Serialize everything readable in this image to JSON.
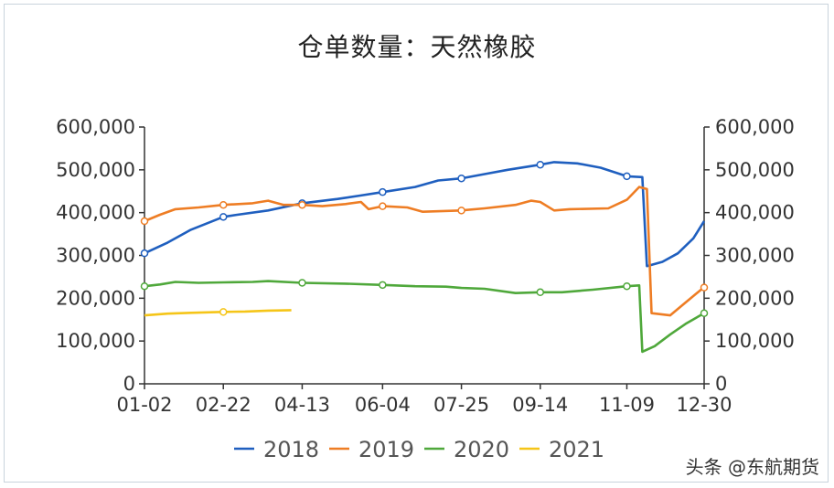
{
  "chart_data": {
    "type": "line",
    "title": "仓单数量：天然橡胶",
    "xlabel": "",
    "ylabel": "",
    "ylim": [
      0,
      600000
    ],
    "yticks": [
      0,
      100000,
      200000,
      300000,
      400000,
      500000,
      600000
    ],
    "ytick_labels": [
      "0",
      "100,000",
      "200,000",
      "300,000",
      "400,000",
      "500,000",
      "600,000"
    ],
    "xtick_labels": [
      "01-02",
      "02-22",
      "04-13",
      "06-04",
      "07-25",
      "09-14",
      "11-09",
      "12-30"
    ],
    "xtick_positions": [
      0,
      51,
      102,
      154,
      205,
      256,
      312,
      362
    ],
    "x_range": [
      0,
      362
    ],
    "legend_position": "bottom",
    "grid": false,
    "series": [
      {
        "name": "2018",
        "color": "#1f5fbf",
        "points": [
          [
            0,
            305000
          ],
          [
            15,
            330000
          ],
          [
            30,
            360000
          ],
          [
            51,
            390000
          ],
          [
            60,
            395000
          ],
          [
            80,
            405000
          ],
          [
            102,
            422000
          ],
          [
            125,
            432000
          ],
          [
            140,
            440000
          ],
          [
            154,
            448000
          ],
          [
            175,
            460000
          ],
          [
            190,
            475000
          ],
          [
            205,
            480000
          ],
          [
            220,
            490000
          ],
          [
            235,
            500000
          ],
          [
            256,
            512000
          ],
          [
            265,
            518000
          ],
          [
            280,
            515000
          ],
          [
            295,
            505000
          ],
          [
            312,
            485000
          ],
          [
            322,
            483000
          ],
          [
            325,
            275000
          ],
          [
            335,
            285000
          ],
          [
            345,
            305000
          ],
          [
            355,
            340000
          ],
          [
            362,
            380000
          ]
        ]
      },
      {
        "name": "2019",
        "color": "#ee7d24",
        "points": [
          [
            0,
            380000
          ],
          [
            10,
            395000
          ],
          [
            20,
            408000
          ],
          [
            35,
            412000
          ],
          [
            51,
            418000
          ],
          [
            70,
            422000
          ],
          [
            80,
            428000
          ],
          [
            90,
            418000
          ],
          [
            102,
            418000
          ],
          [
            115,
            415000
          ],
          [
            130,
            420000
          ],
          [
            140,
            425000
          ],
          [
            145,
            408000
          ],
          [
            154,
            415000
          ],
          [
            170,
            412000
          ],
          [
            180,
            402000
          ],
          [
            205,
            405000
          ],
          [
            220,
            410000
          ],
          [
            240,
            418000
          ],
          [
            250,
            428000
          ],
          [
            256,
            425000
          ],
          [
            265,
            405000
          ],
          [
            275,
            408000
          ],
          [
            300,
            410000
          ],
          [
            312,
            430000
          ],
          [
            320,
            460000
          ],
          [
            325,
            455000
          ],
          [
            328,
            165000
          ],
          [
            340,
            160000
          ],
          [
            350,
            190000
          ],
          [
            360,
            220000
          ],
          [
            362,
            225000
          ]
        ]
      },
      {
        "name": "2020",
        "color": "#4fa83b",
        "points": [
          [
            0,
            228000
          ],
          [
            10,
            232000
          ],
          [
            20,
            238000
          ],
          [
            35,
            236000
          ],
          [
            51,
            237000
          ],
          [
            70,
            238000
          ],
          [
            80,
            240000
          ],
          [
            102,
            236000
          ],
          [
            130,
            234000
          ],
          [
            154,
            231000
          ],
          [
            175,
            228000
          ],
          [
            195,
            227000
          ],
          [
            205,
            224000
          ],
          [
            220,
            222000
          ],
          [
            240,
            212000
          ],
          [
            256,
            214000
          ],
          [
            270,
            214000
          ],
          [
            290,
            220000
          ],
          [
            312,
            228000
          ],
          [
            320,
            230000
          ],
          [
            322,
            75000
          ],
          [
            330,
            88000
          ],
          [
            340,
            115000
          ],
          [
            350,
            140000
          ],
          [
            362,
            165000
          ]
        ]
      },
      {
        "name": "2021",
        "color": "#f5c518",
        "points": [
          [
            0,
            160000
          ],
          [
            15,
            164000
          ],
          [
            30,
            166000
          ],
          [
            51,
            168000
          ],
          [
            65,
            169000
          ],
          [
            80,
            171000
          ],
          [
            95,
            172000
          ]
        ]
      }
    ],
    "markers": [
      {
        "series": "2018",
        "points": [
          [
            0,
            305000
          ],
          [
            51,
            390000
          ],
          [
            102,
            422000
          ],
          [
            154,
            448000
          ],
          [
            205,
            480000
          ],
          [
            256,
            512000
          ],
          [
            312,
            485000
          ]
        ]
      },
      {
        "series": "2019",
        "points": [
          [
            0,
            380000
          ],
          [
            51,
            418000
          ],
          [
            102,
            418000
          ],
          [
            154,
            415000
          ],
          [
            205,
            405000
          ],
          [
            362,
            225000
          ]
        ]
      },
      {
        "series": "2020",
        "points": [
          [
            0,
            228000
          ],
          [
            102,
            236000
          ],
          [
            154,
            231000
          ],
          [
            256,
            214000
          ],
          [
            312,
            228000
          ],
          [
            362,
            165000
          ]
        ]
      },
      {
        "series": "2021",
        "points": [
          [
            51,
            168000
          ]
        ]
      }
    ]
  },
  "watermark": "头条 @东航期货"
}
